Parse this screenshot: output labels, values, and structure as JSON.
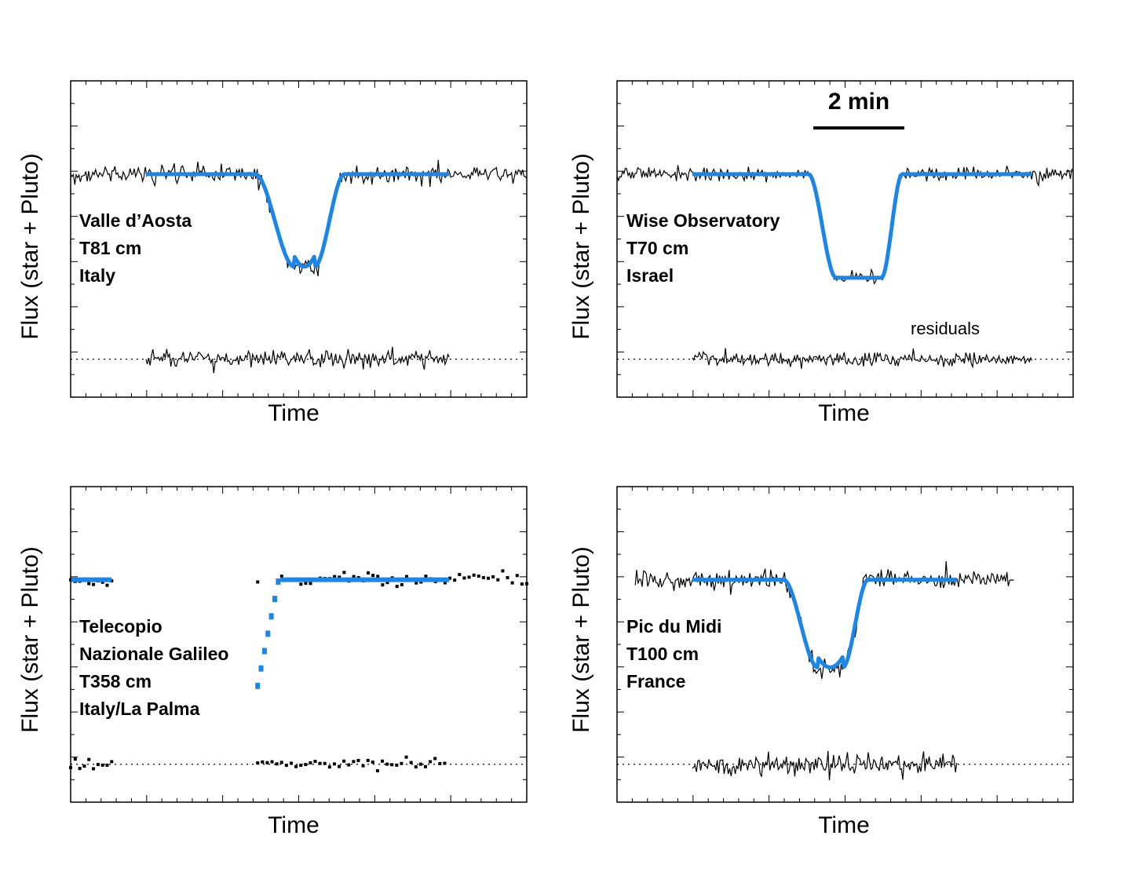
{
  "chart_data": [
    {
      "type": "line",
      "panel": "top-left",
      "xlabel": "Time",
      "ylabel": "Flux (star + Pluto)",
      "x_ticks": "unlabeled",
      "y_ticks": "unlabeled",
      "annotation": [
        "Valle d’Aosta",
        "T81 cm",
        "Italy"
      ],
      "data_style": "noisy line",
      "series": [
        {
          "role": "data",
          "x_range": [
            0,
            1.0
          ],
          "baseline": 1.0,
          "noise": 0.06,
          "minimum": 0.0,
          "ingress_start": 0.405,
          "ingress_end": 0.49,
          "egress_start": 0.535,
          "egress_end": 0.6
        },
        {
          "role": "model",
          "x_range": [
            0.165,
            0.83
          ],
          "baseline": 1.0,
          "minimum": 0.0,
          "ingress_start": 0.405,
          "ingress_end": 0.49,
          "egress_start": 0.535,
          "egress_end": 0.6,
          "shape": "rounded"
        },
        {
          "role": "residuals",
          "x_range": [
            0.165,
            0.83
          ],
          "level": -1.0,
          "noise": 0.06
        }
      ]
    },
    {
      "type": "line",
      "panel": "top-right",
      "xlabel": "Time",
      "ylabel": "Flux (star + Pluto)",
      "x_ticks": "unlabeled",
      "y_ticks": "unlabeled",
      "annotation": [
        "Wise Observatory",
        "T70 cm",
        "Israel"
      ],
      "scale_bar": "2 min",
      "residuals_label": "residuals",
      "data_style": "noisy line",
      "series": [
        {
          "role": "data",
          "x_range": [
            0,
            1.0
          ],
          "baseline": 1.0,
          "noise": 0.045,
          "minimum": -0.12,
          "ingress_start": 0.42,
          "ingress_end": 0.48,
          "egress_start": 0.58,
          "egress_end": 0.625
        },
        {
          "role": "model",
          "x_range": [
            0.165,
            0.91
          ],
          "baseline": 1.0,
          "minimum": -0.12,
          "ingress_start": 0.42,
          "ingress_end": 0.48,
          "egress_start": 0.58,
          "egress_end": 0.625,
          "shape": "flat"
        },
        {
          "role": "residuals",
          "x_range": [
            0.165,
            0.91
          ],
          "level": -1.0,
          "noise": 0.045
        }
      ]
    },
    {
      "type": "scatter",
      "panel": "bottom-left",
      "xlabel": "Time",
      "ylabel": "Flux (star + Pluto)",
      "x_ticks": "unlabeled",
      "y_ticks": "unlabeled",
      "annotation": [
        "Telecopio",
        "Nazionale  Galileo",
        "T358 cm",
        "Italy/La Palma"
      ],
      "data_style": "square dots",
      "series": [
        {
          "role": "data",
          "segments": [
            [
              0,
              0.09
            ],
            [
              0.41,
              1.0
            ]
          ],
          "baseline": 1.0,
          "noise": 0.04
        },
        {
          "role": "model",
          "segments": [
            [
              0,
              0.09
            ],
            [
              0.46,
              0.83
            ]
          ],
          "baseline": 1.0
        },
        {
          "role": "model-ingress",
          "style": "dashed",
          "x_range": [
            0.41,
            0.455
          ],
          "y_range": [
            -0.15,
            0.98
          ]
        },
        {
          "role": "residuals",
          "segments": [
            [
              0,
              0.09
            ],
            [
              0.41,
              0.82
            ]
          ],
          "level": -1.0,
          "noise": 0.04
        }
      ]
    },
    {
      "type": "line",
      "panel": "bottom-right",
      "xlabel": "Time",
      "ylabel": "Flux (star + Pluto)",
      "x_ticks": "unlabeled",
      "y_ticks": "unlabeled",
      "annotation": [
        "Pic du Midi",
        "T100 cm",
        "France"
      ],
      "data_style": "noisy line",
      "series": [
        {
          "role": "data",
          "x_range": [
            0.04,
            0.87
          ],
          "baseline": 1.0,
          "noise": 0.07,
          "minimum": 0.05,
          "ingress_start": 0.365,
          "ingress_end": 0.44,
          "egress_start": 0.495,
          "egress_end": 0.55
        },
        {
          "role": "model",
          "x_range": [
            0.165,
            0.745
          ],
          "baseline": 1.0,
          "minimum": 0.05,
          "ingress_start": 0.365,
          "ingress_end": 0.44,
          "egress_start": 0.495,
          "egress_end": 0.55,
          "shape": "rounded"
        },
        {
          "role": "residuals",
          "x_range": [
            0.165,
            0.745
          ],
          "level": -1.0,
          "noise": 0.07
        }
      ]
    }
  ],
  "colors": {
    "model": "#1c86e8",
    "data": "#000000",
    "frame": "#000000",
    "zero_line": "#000000"
  }
}
